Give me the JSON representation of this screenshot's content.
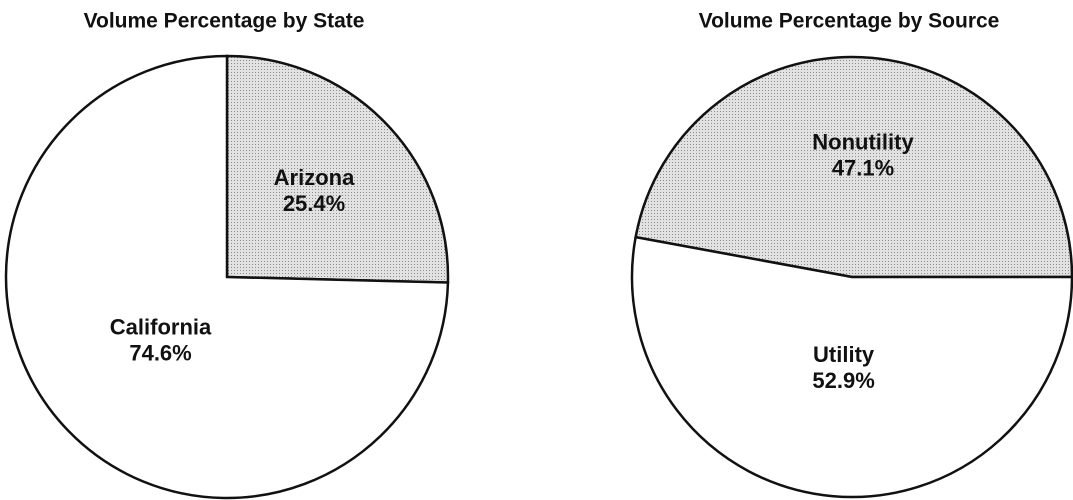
{
  "chart_data": [
    {
      "type": "pie",
      "title": "Volume Percentage by State",
      "categories": [
        "Arizona",
        "California"
      ],
      "values": [
        25.4,
        74.6
      ],
      "value_labels": [
        "25.4%",
        "74.6%"
      ],
      "colors": [
        "#cfcfcf",
        "#ffffff"
      ],
      "startangle": 90,
      "counterclock": false
    },
    {
      "type": "pie",
      "title": "Volume Percentage by Source",
      "categories": [
        "Nonutility",
        "Utility"
      ],
      "values": [
        47.1,
        52.9
      ],
      "value_labels": [
        "47.1%",
        "52.9%"
      ],
      "colors": [
        "#cfcfcf",
        "#ffffff"
      ],
      "startangle": 0,
      "counterclock": true
    }
  ]
}
